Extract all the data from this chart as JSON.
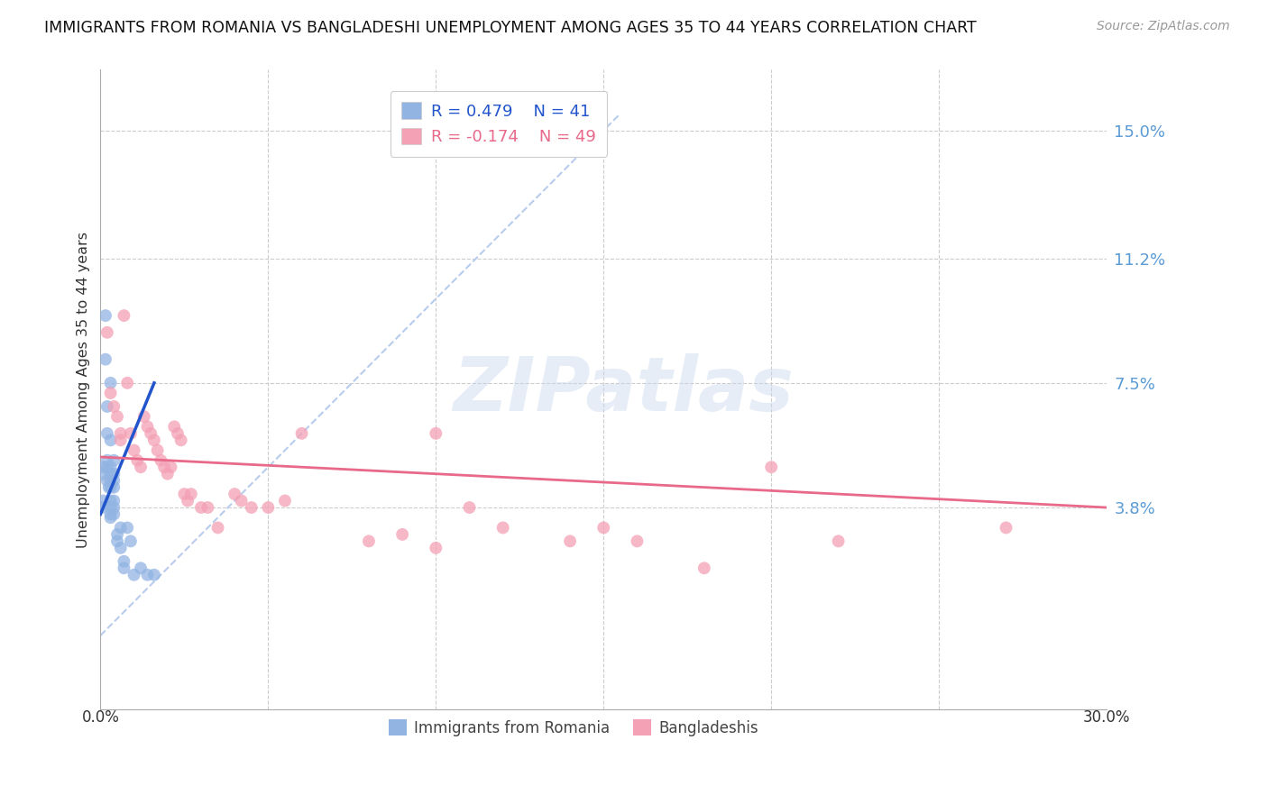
{
  "title": "IMMIGRANTS FROM ROMANIA VS BANGLADESHI UNEMPLOYMENT AMONG AGES 35 TO 44 YEARS CORRELATION CHART",
  "source": "Source: ZipAtlas.com",
  "ylabel": "Unemployment Among Ages 35 to 44 years",
  "legend_romania": "Immigrants from Romania",
  "legend_bangladeshi": "Bangladeshis",
  "legend_r_romania": "R = 0.479",
  "legend_n_romania": "N = 41",
  "legend_r_bangladeshi": "R = -0.174",
  "legend_n_bangladeshi": "N = 49",
  "ytick_labels": [
    "3.8%",
    "7.5%",
    "11.2%",
    "15.0%"
  ],
  "ytick_values": [
    0.038,
    0.075,
    0.112,
    0.15
  ],
  "xlim": [
    0.0,
    0.3
  ],
  "ylim": [
    -0.022,
    0.168
  ],
  "romania_color": "#92b4e3",
  "bangladeshi_color": "#f4a0b5",
  "romania_line_color": "#2255cc",
  "bangladeshi_line_color": "#e8698a",
  "dashed_line_color": "#b8ccee",
  "watermark_text": "ZIPatlas",
  "romania_scatter": [
    [
      0.0005,
      0.038
    ],
    [
      0.0008,
      0.04
    ],
    [
      0.001,
      0.05
    ],
    [
      0.001,
      0.048
    ],
    [
      0.0015,
      0.095
    ],
    [
      0.0015,
      0.082
    ],
    [
      0.002,
      0.068
    ],
    [
      0.002,
      0.06
    ],
    [
      0.002,
      0.052
    ],
    [
      0.002,
      0.05
    ],
    [
      0.002,
      0.046
    ],
    [
      0.0025,
      0.044
    ],
    [
      0.003,
      0.075
    ],
    [
      0.003,
      0.058
    ],
    [
      0.003,
      0.05
    ],
    [
      0.003,
      0.048
    ],
    [
      0.003,
      0.046
    ],
    [
      0.003,
      0.044
    ],
    [
      0.003,
      0.04
    ],
    [
      0.003,
      0.038
    ],
    [
      0.003,
      0.036
    ],
    [
      0.003,
      0.035
    ],
    [
      0.004,
      0.052
    ],
    [
      0.004,
      0.048
    ],
    [
      0.004,
      0.046
    ],
    [
      0.004,
      0.044
    ],
    [
      0.004,
      0.04
    ],
    [
      0.004,
      0.038
    ],
    [
      0.004,
      0.036
    ],
    [
      0.005,
      0.03
    ],
    [
      0.005,
      0.028
    ],
    [
      0.006,
      0.032
    ],
    [
      0.006,
      0.026
    ],
    [
      0.007,
      0.022
    ],
    [
      0.007,
      0.02
    ],
    [
      0.008,
      0.032
    ],
    [
      0.009,
      0.028
    ],
    [
      0.01,
      0.018
    ],
    [
      0.012,
      0.02
    ],
    [
      0.014,
      0.018
    ],
    [
      0.016,
      0.018
    ]
  ],
  "bangladeshi_scatter": [
    [
      0.002,
      0.09
    ],
    [
      0.003,
      0.072
    ],
    [
      0.004,
      0.068
    ],
    [
      0.005,
      0.065
    ],
    [
      0.006,
      0.06
    ],
    [
      0.006,
      0.058
    ],
    [
      0.007,
      0.095
    ],
    [
      0.008,
      0.075
    ],
    [
      0.009,
      0.06
    ],
    [
      0.01,
      0.055
    ],
    [
      0.011,
      0.052
    ],
    [
      0.012,
      0.05
    ],
    [
      0.013,
      0.065
    ],
    [
      0.014,
      0.062
    ],
    [
      0.015,
      0.06
    ],
    [
      0.016,
      0.058
    ],
    [
      0.017,
      0.055
    ],
    [
      0.018,
      0.052
    ],
    [
      0.019,
      0.05
    ],
    [
      0.02,
      0.048
    ],
    [
      0.021,
      0.05
    ],
    [
      0.022,
      0.062
    ],
    [
      0.023,
      0.06
    ],
    [
      0.024,
      0.058
    ],
    [
      0.025,
      0.042
    ],
    [
      0.026,
      0.04
    ],
    [
      0.027,
      0.042
    ],
    [
      0.03,
      0.038
    ],
    [
      0.032,
      0.038
    ],
    [
      0.035,
      0.032
    ],
    [
      0.04,
      0.042
    ],
    [
      0.042,
      0.04
    ],
    [
      0.045,
      0.038
    ],
    [
      0.05,
      0.038
    ],
    [
      0.055,
      0.04
    ],
    [
      0.06,
      0.06
    ],
    [
      0.08,
      0.028
    ],
    [
      0.09,
      0.03
    ],
    [
      0.1,
      0.06
    ],
    [
      0.1,
      0.026
    ],
    [
      0.11,
      0.038
    ],
    [
      0.12,
      0.032
    ],
    [
      0.14,
      0.028
    ],
    [
      0.15,
      0.032
    ],
    [
      0.16,
      0.028
    ],
    [
      0.18,
      0.02
    ],
    [
      0.2,
      0.05
    ],
    [
      0.22,
      0.028
    ],
    [
      0.27,
      0.032
    ]
  ],
  "romania_line": [
    [
      0.0,
      0.036
    ],
    [
      0.016,
      0.075
    ]
  ],
  "bangladeshi_line": [
    [
      0.0,
      0.053
    ],
    [
      0.3,
      0.038
    ]
  ],
  "dashed_line": [
    [
      0.0,
      0.0
    ],
    [
      0.155,
      0.155
    ]
  ]
}
